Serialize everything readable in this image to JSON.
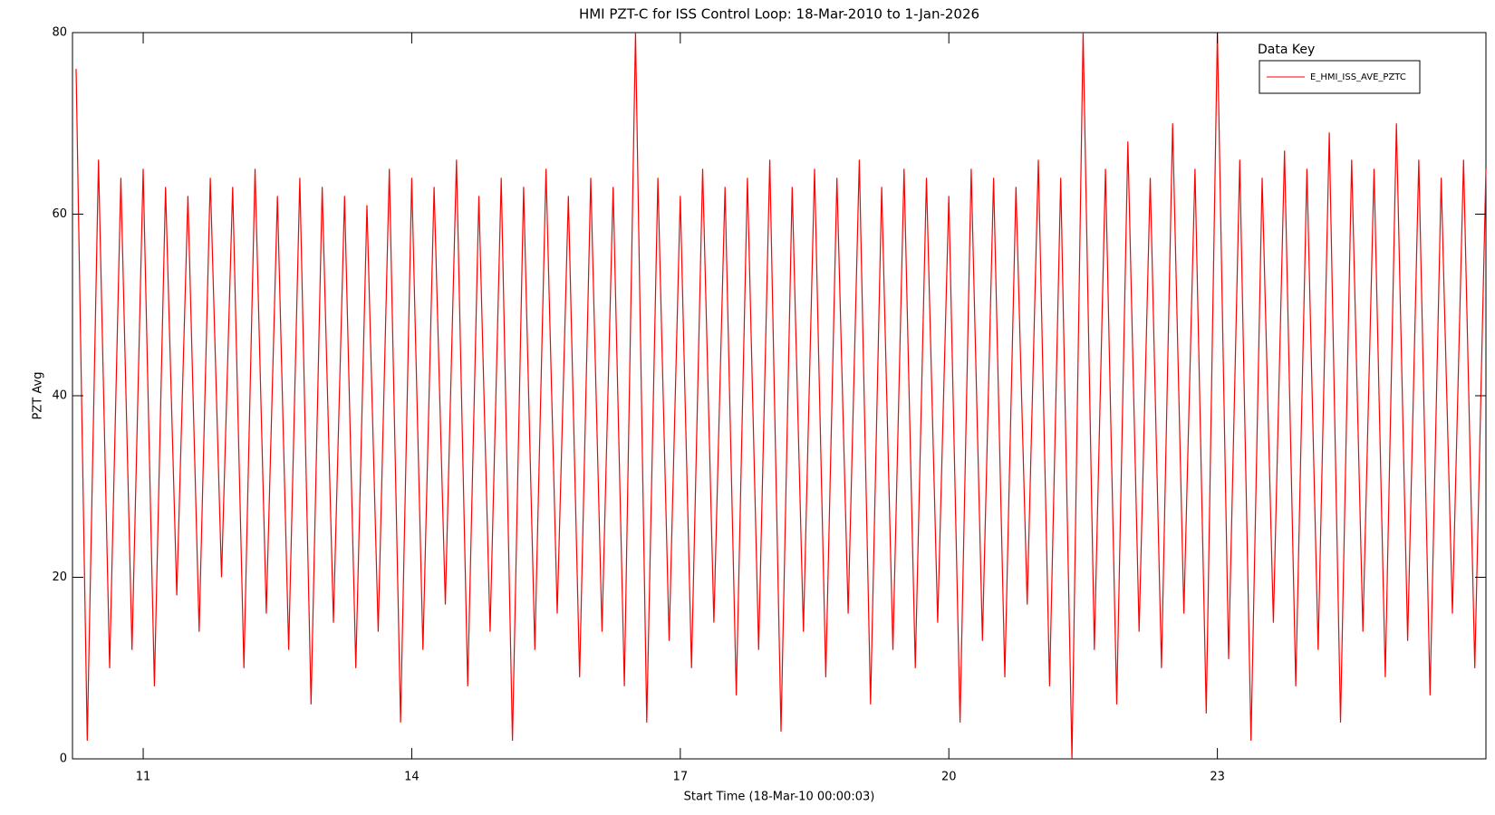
{
  "chart_data": {
    "type": "line",
    "title": "HMI PZT-C for ISS Control Loop: 18-Mar-2010 to 1-Jan-2026",
    "x_label": "Start Time (18-Mar-10 00:00:03)",
    "y_label": "PZT Avg",
    "legend_title": "Data Key",
    "legend": "top-right",
    "x": [
      10.25,
      10.375,
      10.5,
      10.625,
      10.75,
      10.875,
      11,
      11.125,
      11.25,
      11.375,
      11.5,
      11.625,
      11.75,
      11.875,
      12,
      12.125,
      12.25,
      12.375,
      12.5,
      12.625,
      12.75,
      12.875,
      13,
      13.125,
      13.25,
      13.375,
      13.5,
      13.625,
      13.75,
      13.875,
      14,
      14.125,
      14.25,
      14.375,
      14.5,
      14.625,
      14.75,
      14.875,
      15,
      15.125,
      15.25,
      15.375,
      15.5,
      15.625,
      15.75,
      15.875,
      16,
      16.125,
      16.25,
      16.375,
      16.5,
      16.625,
      16.75,
      16.875,
      17,
      17.125,
      17.25,
      17.375,
      17.5,
      17.625,
      17.75,
      17.875,
      18,
      18.125,
      18.25,
      18.375,
      18.5,
      18.625,
      18.75,
      18.875,
      19,
      19.125,
      19.25,
      19.375,
      19.5,
      19.625,
      19.75,
      19.875,
      20,
      20.125,
      20.25,
      20.375,
      20.5,
      20.625,
      20.75,
      20.875,
      21,
      21.125,
      21.25,
      21.375,
      21.5,
      21.625,
      21.75,
      21.875,
      22,
      22.125,
      22.25,
      22.375,
      22.5,
      22.625,
      22.75,
      22.875,
      23,
      23.125,
      23.25,
      23.375,
      23.5,
      23.625,
      23.75,
      23.875,
      24,
      24.125,
      24.25,
      24.375,
      24.5,
      24.625,
      24.75,
      24.875,
      25,
      25.125,
      25.25,
      25.375,
      25.5,
      25.625,
      25.75,
      25.875,
      26
    ],
    "series": [
      {
        "name": "E_HMI_ISS_AVE_PZTC",
        "color": "#ff0000",
        "values": [
          76,
          2,
          66,
          10,
          64,
          12,
          65,
          8,
          63,
          18,
          62,
          14,
          64,
          20,
          63,
          10,
          65,
          16,
          62,
          12,
          64,
          6,
          63,
          15,
          62,
          10,
          61,
          14,
          65,
          4,
          64,
          12,
          63,
          17,
          66,
          8,
          62,
          14,
          64,
          2,
          63,
          12,
          65,
          16,
          62,
          9,
          64,
          14,
          63,
          8,
          80,
          4,
          64,
          13,
          62,
          10,
          65,
          15,
          63,
          7,
          64,
          12,
          66,
          3,
          63,
          14,
          65,
          9,
          64,
          16,
          66,
          6,
          63,
          12,
          65,
          10,
          64,
          15,
          62,
          4,
          65,
          13,
          64,
          9,
          63,
          17,
          66,
          8,
          64,
          0,
          80,
          12,
          65,
          6,
          68,
          14,
          64,
          10,
          70,
          16,
          65,
          5,
          80,
          11,
          66,
          2,
          64,
          15,
          67,
          8,
          65,
          12,
          69,
          4,
          66,
          14,
          65,
          9,
          70,
          13,
          66,
          7,
          64,
          16,
          66,
          10,
          65
        ]
      }
    ],
    "xlim": [
      10.21,
      26.0
    ],
    "ylim": [
      0,
      80
    ],
    "xticks": [
      11,
      14,
      17,
      20,
      23
    ],
    "yticks": [
      0,
      20,
      40,
      60,
      80
    ]
  }
}
